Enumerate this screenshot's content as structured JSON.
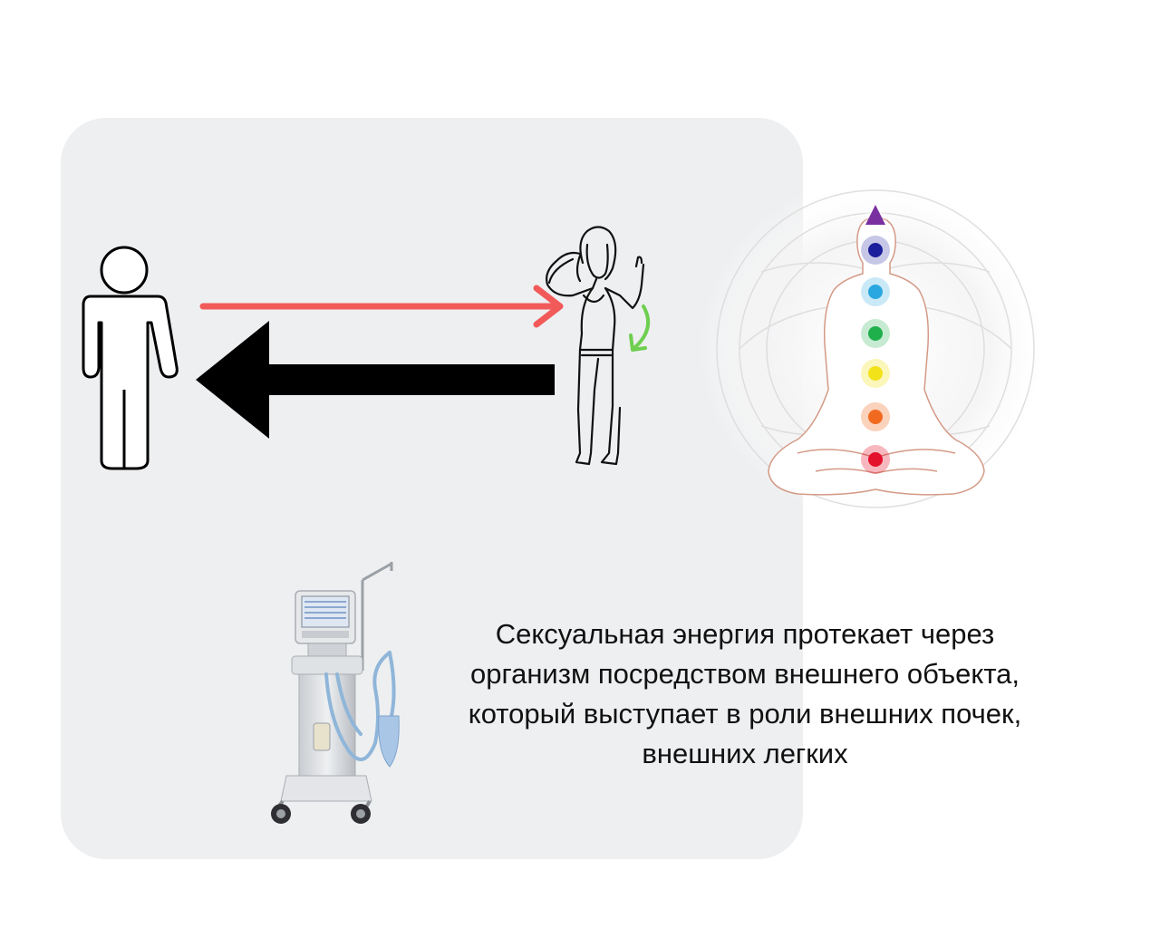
{
  "caption": {
    "line1": "Сексуальная энергия протекает через",
    "line2": "организм посредством внешнего объекта,",
    "line3": "который выступает в роли внешних почек,",
    "line4": "внешних легких"
  },
  "icons": {
    "person": "person-outline-icon",
    "woman": "woman-sketch-icon",
    "meditator": "meditation-chakras-icon",
    "ventilator": "medical-ventilator-icon"
  },
  "colors": {
    "panel": "#eeeff0",
    "red_arrow": "#f25a5a",
    "black_arrow": "#000000",
    "green_arrow": "#6ecf4f",
    "chakras": [
      "#7a2fa0",
      "#1c1f9c",
      "#2aa7e0",
      "#1fb04b",
      "#f2e21a",
      "#f26a1f",
      "#e3112c"
    ]
  }
}
